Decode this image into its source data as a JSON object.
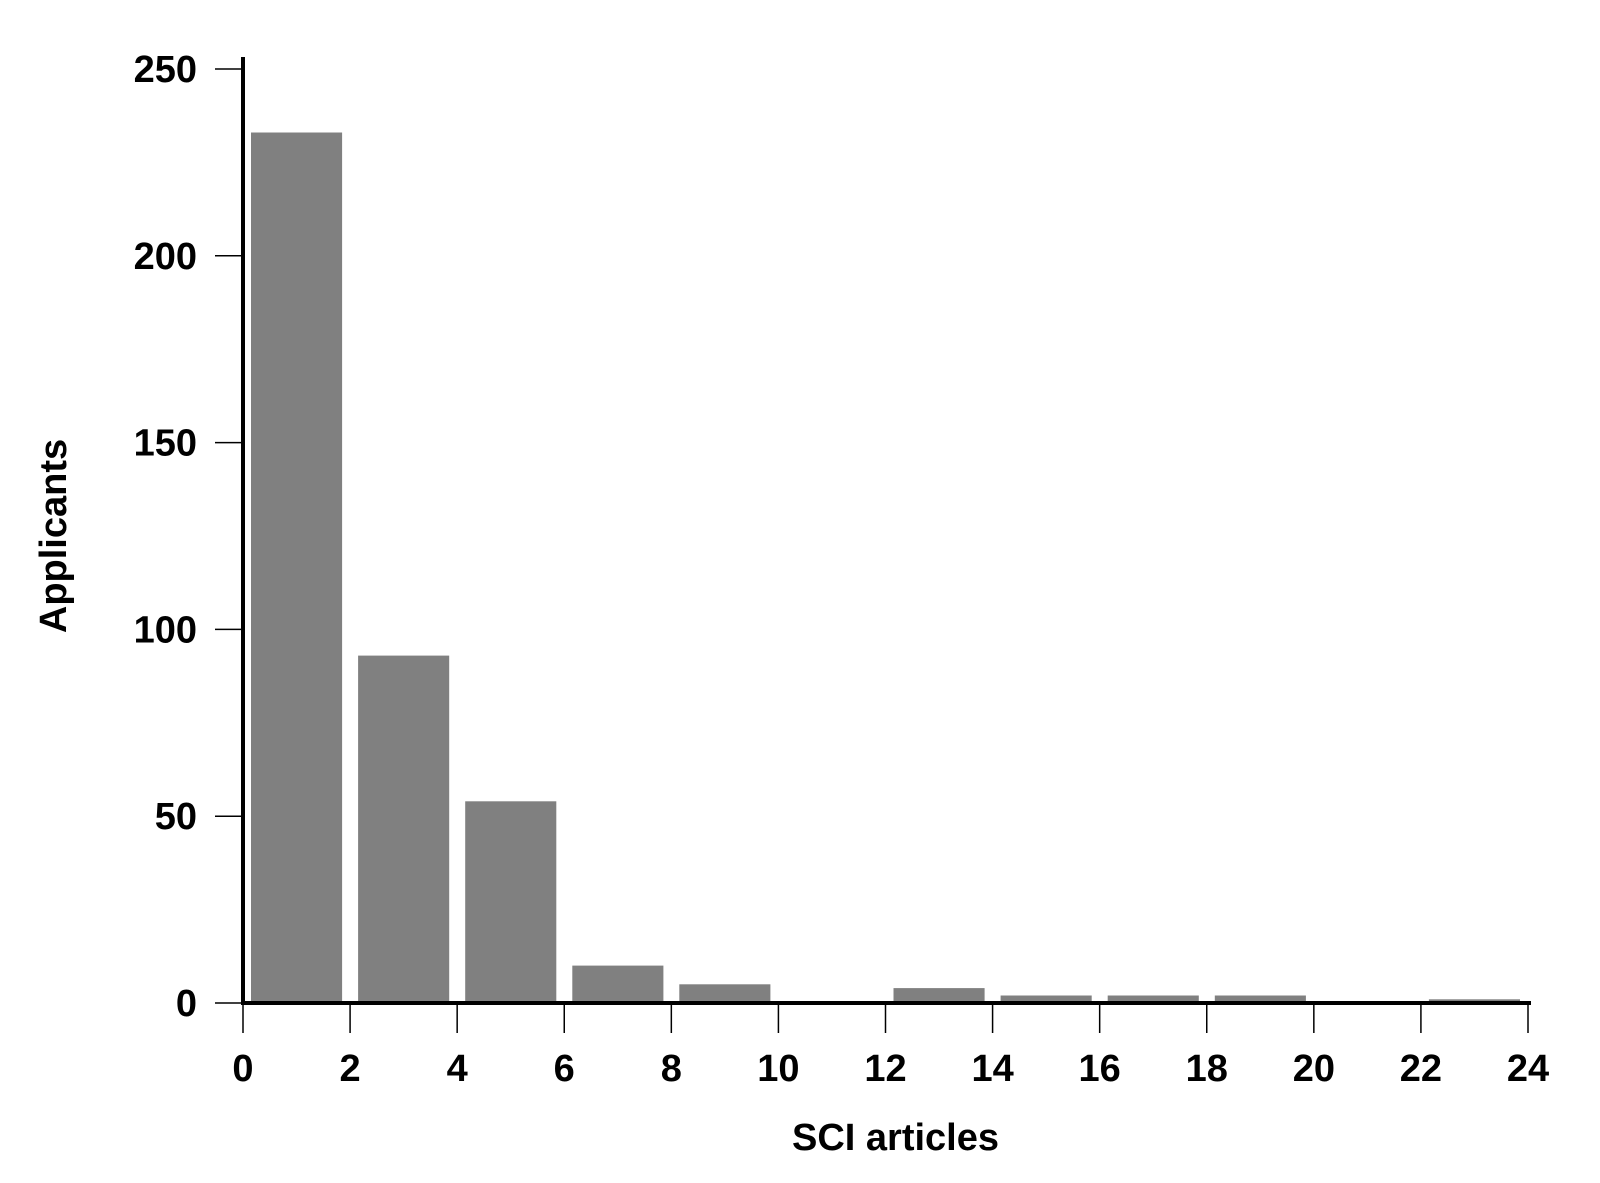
{
  "chart_data": {
    "type": "bar",
    "title": "",
    "xlabel": "SCI articles",
    "ylabel": "Applicants",
    "bin_edges": [
      0,
      2,
      4,
      6,
      8,
      10,
      12,
      14,
      16,
      18,
      20,
      22,
      24
    ],
    "values": [
      233,
      93,
      54,
      10,
      5,
      0,
      4,
      2,
      2,
      2,
      0,
      1
    ],
    "x_ticks": [
      0,
      2,
      4,
      6,
      8,
      10,
      12,
      14,
      16,
      18,
      20,
      22,
      24
    ],
    "y_ticks": [
      0,
      50,
      100,
      150,
      200,
      250
    ],
    "xlim": [
      0,
      24
    ],
    "ylim": [
      0,
      250
    ],
    "grid": false,
    "legend": "none",
    "bar_color": "#808080",
    "axis_color": "#000000"
  }
}
